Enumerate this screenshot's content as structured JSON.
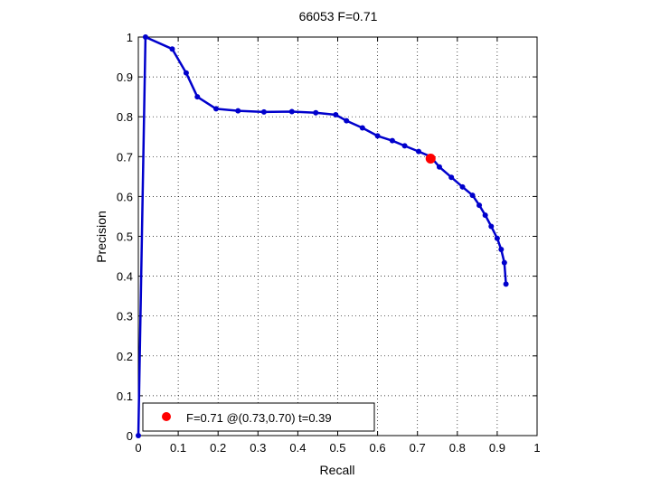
{
  "chart_data": {
    "type": "line",
    "title": "66053 F=0.71",
    "xlabel": "Recall",
    "ylabel": "Precision",
    "xlim": [
      0,
      1
    ],
    "ylim": [
      0,
      1
    ],
    "grid": true,
    "x_ticks": [
      "0",
      "0.1",
      "0.2",
      "0.3",
      "0.4",
      "0.5",
      "0.6",
      "0.7",
      "0.8",
      "0.9",
      "1"
    ],
    "y_ticks": [
      "0",
      "0.1",
      "0.2",
      "0.3",
      "0.4",
      "0.5",
      "0.6",
      "0.7",
      "0.8",
      "0.9",
      "1"
    ],
    "series": [
      {
        "color": "#0000cc",
        "points": [
          [
            0.0,
            0.0
          ],
          [
            0.018,
            1.0
          ],
          [
            0.085,
            0.97
          ],
          [
            0.12,
            0.91
          ],
          [
            0.148,
            0.85
          ],
          [
            0.195,
            0.82
          ],
          [
            0.25,
            0.815
          ],
          [
            0.315,
            0.812
          ],
          [
            0.385,
            0.813
          ],
          [
            0.445,
            0.81
          ],
          [
            0.495,
            0.805
          ],
          [
            0.522,
            0.79
          ],
          [
            0.562,
            0.772
          ],
          [
            0.6,
            0.752
          ],
          [
            0.637,
            0.74
          ],
          [
            0.668,
            0.727
          ],
          [
            0.703,
            0.713
          ],
          [
            0.733,
            0.7
          ],
          [
            0.755,
            0.674
          ],
          [
            0.785,
            0.648
          ],
          [
            0.813,
            0.624
          ],
          [
            0.838,
            0.603
          ],
          [
            0.855,
            0.578
          ],
          [
            0.87,
            0.553
          ],
          [
            0.885,
            0.525
          ],
          [
            0.9,
            0.495
          ],
          [
            0.91,
            0.467
          ],
          [
            0.918,
            0.434
          ],
          [
            0.922,
            0.38
          ]
        ]
      }
    ],
    "highlight": {
      "x": 0.733,
      "y": 0.695,
      "color": "#ff0000"
    },
    "legend": {
      "placement": "bottom-left",
      "label": "F=0.71 @(0.73,0.70) t=0.39",
      "marker_color": "#ff0000"
    }
  }
}
